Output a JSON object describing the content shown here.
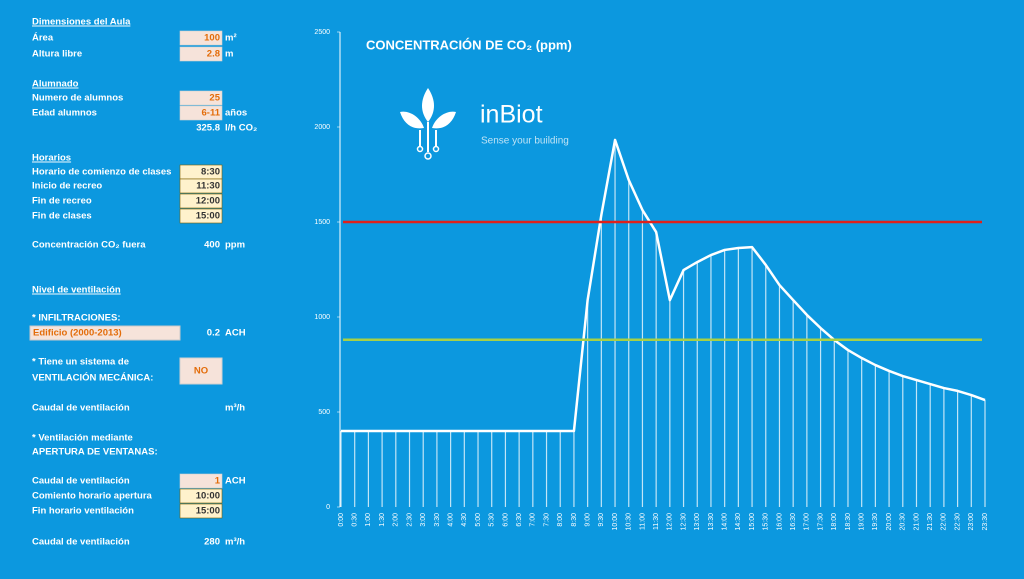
{
  "form": {
    "rows": [
      {
        "kind": "heading",
        "label": "Dimensiones del Aula"
      },
      {
        "kind": "input",
        "label": "Área",
        "value": 100,
        "unit": "m²"
      },
      {
        "kind": "input",
        "label": "Altura libre",
        "value": 2.8,
        "unit": "m"
      },
      {
        "kind": "heading",
        "label": "Alumnado"
      },
      {
        "kind": "input",
        "label": "Numero de alumnos",
        "value": 25
      },
      {
        "kind": "input",
        "label": "Edad alumnos",
        "value": "6-11",
        "unit": "años"
      },
      {
        "kind": "plain",
        "value": 325.8,
        "unit": "l/h CO₂"
      },
      {
        "kind": "heading",
        "label": "Horarios"
      },
      {
        "kind": "time",
        "label": "Horario de comienzo de clases",
        "value": "8:30"
      },
      {
        "kind": "time",
        "label": "Inicio de recreo",
        "value": "11:30"
      },
      {
        "kind": "time",
        "label": "Fin de recreo",
        "value": "12:00"
      },
      {
        "kind": "time",
        "label": "Fin de clases",
        "value": "15:00"
      },
      {
        "kind": "plain",
        "label": "Concentración CO₂ fuera",
        "value": 400,
        "unit": "ppm"
      },
      {
        "kind": "heading",
        "label": "Nivel de ventilación"
      },
      {
        "kind": "text",
        "label": "* INFILTRACIONES:"
      },
      {
        "kind": "dropdown",
        "label": "Edificio (2000-2013)",
        "value": 0.2,
        "unit": "ACH"
      },
      {
        "kind": "text",
        "label": "* Tiene un sistema de"
      },
      {
        "kind": "button",
        "label": "VENTILACIÓN MECÁNICA:",
        "value": "NO"
      },
      {
        "kind": "plain",
        "label": "Caudal de ventilación",
        "unit": "m³/h"
      },
      {
        "kind": "text",
        "label": "* Ventilación mediante"
      },
      {
        "kind": "text",
        "label": "APERTURA DE VENTANAS:"
      },
      {
        "kind": "input",
        "label": "Caudal de ventilación",
        "value": 1,
        "unit": "ACH"
      },
      {
        "kind": "time",
        "label": "Comiento horario apertura",
        "value": "10:00"
      },
      {
        "kind": "time",
        "label": "Fin horario ventilación",
        "value": "15:00"
      },
      {
        "kind": "plain",
        "label": "Caudal de ventilación",
        "value": 280,
        "unit": "m³/h"
      }
    ]
  },
  "logo": {
    "name": "inBiot",
    "tagline": "Sense your building"
  },
  "chart_data": {
    "type": "area",
    "title": "CONCENTRACIÓN DE CO₂ (ppm)",
    "categories": [
      "0:00",
      "0:30",
      "1:00",
      "1:30",
      "2:00",
      "2:30",
      "3:00",
      "3:30",
      "4:00",
      "4:30",
      "5:00",
      "5:30",
      "6:00",
      "6:30",
      "7:00",
      "7:30",
      "8:00",
      "8:30",
      "9:00",
      "9:30",
      "10:00",
      "10:30",
      "11:00",
      "11:30",
      "12:00",
      "12:30",
      "13:00",
      "13:30",
      "14:00",
      "14:30",
      "15:00",
      "15:30",
      "16:00",
      "16:30",
      "17:00",
      "17:30",
      "18:00",
      "18:30",
      "19:00",
      "19:30",
      "20:00",
      "20:30",
      "21:00",
      "21:30",
      "22:00",
      "22:30",
      "23:00",
      "23:30"
    ],
    "values": [
      400,
      400,
      400,
      400,
      400,
      400,
      400,
      400,
      400,
      400,
      400,
      400,
      400,
      400,
      400,
      400,
      400,
      400,
      1090,
      1537,
      1932,
      1721,
      1563,
      1447,
      1089,
      1247,
      1289,
      1326,
      1353,
      1363,
      1368,
      1274,
      1168,
      1089,
      1011,
      942,
      879,
      826,
      784,
      747,
      716,
      689,
      668,
      647,
      626,
      611,
      589,
      563
    ],
    "color": "#ffffff",
    "reference_lines": [
      {
        "value": 1500,
        "color": "#e0201b"
      },
      {
        "value": 880,
        "color": "#a8d045"
      }
    ],
    "ylim": [
      0,
      2500
    ],
    "yticks": [
      0,
      500,
      1000,
      1500,
      2000,
      2500
    ]
  }
}
